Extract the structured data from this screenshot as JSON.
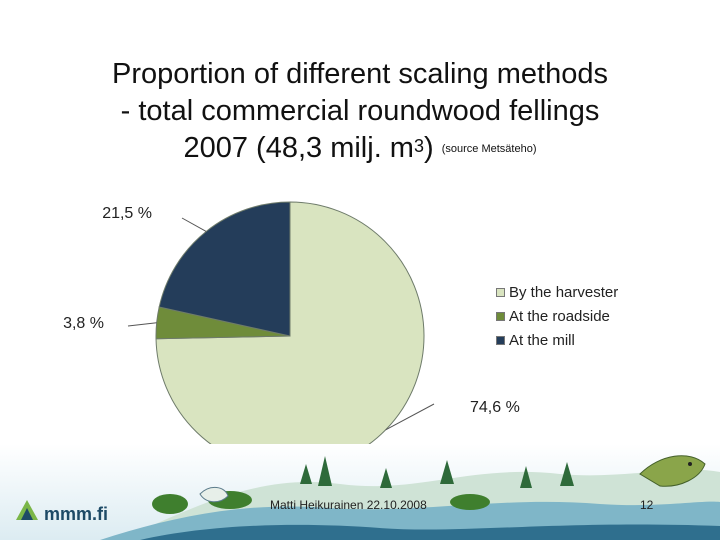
{
  "title": {
    "line1": "Proportion of different scaling methods",
    "line2": "- total commercial roundwood fellings",
    "line3_main": "2007 (48,3 milj. m",
    "line3_sup": "3",
    "line3_close": ")",
    "source": "(source Metsäteho)"
  },
  "chart_data": {
    "type": "pie",
    "categories": [
      "By the harvester",
      "At the roadside",
      "At the mill"
    ],
    "values": [
      74.6,
      3.8,
      21.5
    ],
    "data_labels": [
      "74,6 %",
      "3,8 %",
      "21,5 %"
    ],
    "colors": [
      "#d9e4c0",
      "#6f8c3a",
      "#243d5a"
    ],
    "legend_placement": "right"
  },
  "footer": {
    "logo": "mmm.fi",
    "author_date": "Matti Heikurainen 22.10.2008",
    "page_number": "12"
  }
}
